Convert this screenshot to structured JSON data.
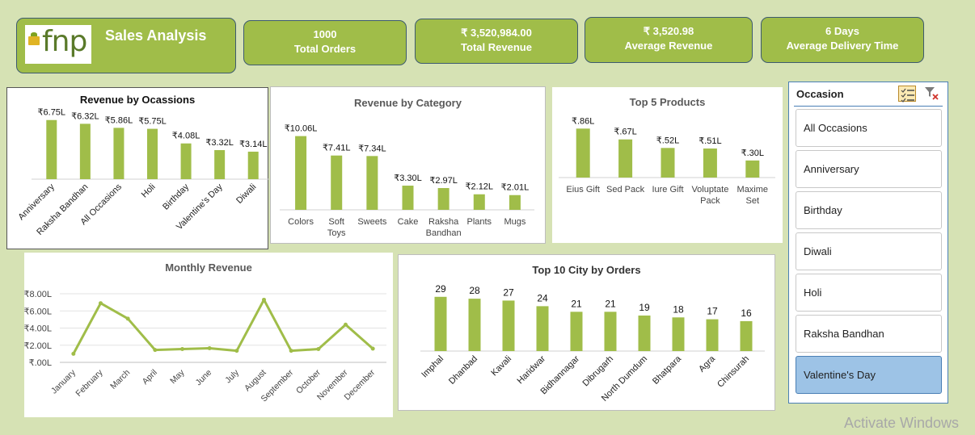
{
  "dashboard": {
    "brand": "fnp",
    "title": "Sales Analysis",
    "kpis": [
      {
        "value": "1000",
        "label": "Total Orders"
      },
      {
        "value": "₹ 3,520,984.00",
        "label": "Total Revenue"
      },
      {
        "value": "₹ 3,520.98",
        "label": "Average Revenue"
      },
      {
        "value": "6 Days",
        "label": "Average Delivery Time"
      }
    ]
  },
  "slicer": {
    "title": "Occasion",
    "items": [
      "All Occasions",
      "Anniversary",
      "Birthday",
      "Diwali",
      "Holi",
      "Raksha Bandhan",
      "Valentine's Day"
    ],
    "selected": "Valentine's Day"
  },
  "watermark": "Activate Windows",
  "colors": {
    "bar": "#a0bd49",
    "panel_bg": "#ffffff",
    "page_bg": "#d6e2b4",
    "selected": "#9dc3e6"
  },
  "chart_data": [
    {
      "id": "occasion",
      "type": "bar",
      "title": "Revenue by Ocassions",
      "categories": [
        "Anniversary",
        "Raksha Bandhan",
        "All Occasions",
        "Holi",
        "Birthday",
        "Valentine's Day",
        "Diwali"
      ],
      "values": [
        6.75,
        6.32,
        5.86,
        5.75,
        4.08,
        3.32,
        3.14
      ],
      "labels": [
        "₹6.75L",
        "₹6.32L",
        "₹5.86L",
        "₹5.75L",
        "₹4.08L",
        "₹3.32L",
        "₹3.14L"
      ],
      "ylim": [
        0,
        8.2
      ],
      "tick_rotation": "diagonal"
    },
    {
      "id": "category",
      "type": "bar",
      "title": "Revenue by Category",
      "categories": [
        [
          "Colors"
        ],
        [
          "Soft",
          "Toys"
        ],
        [
          "Sweets"
        ],
        [
          "Cake"
        ],
        [
          "Raksha",
          "Bandhan"
        ],
        [
          "Plants"
        ],
        [
          "Mugs"
        ]
      ],
      "values": [
        10.06,
        7.41,
        7.34,
        3.3,
        2.97,
        2.12,
        2.01
      ],
      "labels": [
        "₹10.06L",
        "₹7.41L",
        "₹7.34L",
        "₹3.30L",
        "₹2.97L",
        "₹2.12L",
        "₹2.01L"
      ],
      "ylim": [
        0,
        10.9
      ]
    },
    {
      "id": "products",
      "type": "bar",
      "title": "Top 5 Products",
      "categories": [
        [
          "Eius Gift"
        ],
        [
          "Sed Pack"
        ],
        [
          "Iure Gift"
        ],
        [
          "Voluptate",
          "Pack"
        ],
        [
          "Maxime",
          "Set"
        ]
      ],
      "values": [
        0.86,
        0.67,
        0.52,
        0.51,
        0.3
      ],
      "labels": [
        "₹.86L",
        "₹.67L",
        "₹.52L",
        "₹.51L",
        "₹.30L"
      ],
      "ylim": [
        0,
        0.95
      ]
    },
    {
      "id": "monthly",
      "type": "line",
      "title": "Monthly Revenue",
      "categories": [
        "January",
        "February",
        "March",
        "April",
        "May",
        "June",
        "July",
        "August",
        "September",
        "October",
        "November",
        "December"
      ],
      "values": [
        1.0,
        6.9,
        5.1,
        1.45,
        1.55,
        1.65,
        1.35,
        7.3,
        1.35,
        1.55,
        4.4,
        1.6
      ],
      "ylabel_ticks": [
        "₹.00L",
        "₹2.00L",
        "₹4.00L",
        "₹6.00L",
        "₹8.00L"
      ],
      "ylim": [
        0,
        8
      ],
      "grid": true
    },
    {
      "id": "city",
      "type": "bar",
      "title": "Top 10 City by Orders",
      "categories": [
        "Imphal",
        "Dhanbad",
        "Kavali",
        "Haridwar",
        "Bidhannagar",
        "Dibrugarh",
        "North Dumdum",
        "Bhatpara",
        "Agra",
        "Chinsurah"
      ],
      "values": [
        29,
        28,
        27,
        24,
        21,
        21,
        19,
        18,
        17,
        16
      ],
      "labels": [
        "29",
        "28",
        "27",
        "24",
        "21",
        "21",
        "19",
        "18",
        "17",
        "16"
      ],
      "ylim": [
        0,
        31.5
      ],
      "tick_rotation": "diagonal"
    }
  ]
}
